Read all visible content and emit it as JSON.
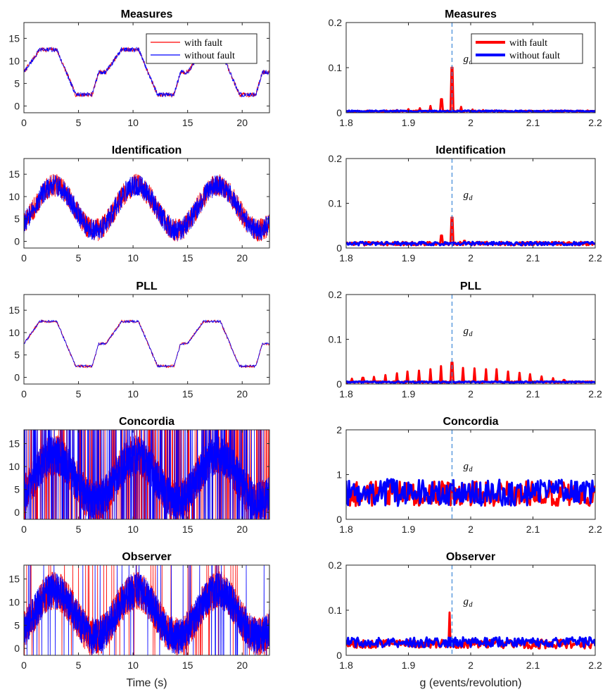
{
  "chart_data": [
    {
      "type": "line",
      "panel": "time",
      "title": "Measures",
      "xlim": [
        0,
        22.5
      ],
      "ylim": [
        -1.5,
        18.5
      ],
      "xticks": [
        "0",
        "5",
        "10",
        "15",
        "20"
      ],
      "yticks": [
        "0",
        "5",
        "10",
        "15"
      ],
      "xlabel": "",
      "ylabel": "",
      "legend": [
        "with fault",
        "without fault"
      ],
      "series": [
        {
          "name": "with fault",
          "color": "#ff0000",
          "shape": "trapezoid",
          "noise": 0.5,
          "spikes": 0
        },
        {
          "name": "without fault",
          "color": "#0000ff",
          "shape": "trapezoid",
          "noise": 0.5,
          "spikes": 0
        }
      ]
    },
    {
      "type": "line",
      "panel": "spectrum",
      "title": "Measures",
      "xlim": [
        1.8,
        2.2
      ],
      "ylim": [
        0,
        0.2
      ],
      "xticks": [
        "1.8",
        "1.9",
        "2",
        "2.1",
        "2.2"
      ],
      "yticks": [
        "0",
        "0.1",
        "0.2"
      ],
      "xlabel": "",
      "ylabel": "",
      "gd": 1.97,
      "gd_label": "g",
      "gd_sub": "d",
      "legend": [
        "with fault",
        "without fault"
      ],
      "series": [
        {
          "name": "with fault",
          "color": "#ff0000",
          "peaks": [
            [
              1.97,
              0.1
            ],
            [
              1.953,
              0.03
            ],
            [
              1.985,
              0.013
            ],
            [
              1.936,
              0.015
            ],
            [
              2.003,
              0.007
            ],
            [
              1.918,
              0.01
            ],
            [
              2.02,
              0.006
            ],
            [
              1.9,
              0.008
            ],
            [
              2.038,
              0.005
            ],
            [
              1.882,
              0.006
            ],
            [
              1.864,
              0.005
            ],
            [
              2.055,
              0.004
            ]
          ],
          "base": 0.002,
          "noise": 0.003
        },
        {
          "name": "without fault",
          "color": "#0000ff",
          "peaks": [],
          "base": 0.002,
          "noise": 0.003
        }
      ]
    },
    {
      "type": "line",
      "panel": "time",
      "title": "Identification",
      "xlim": [
        0,
        22.5
      ],
      "ylim": [
        -1.5,
        18.5
      ],
      "xticks": [
        "0",
        "5",
        "10",
        "15",
        "20"
      ],
      "yticks": [
        "0",
        "5",
        "10",
        "15"
      ],
      "xlabel": "",
      "ylabel": "",
      "series": [
        {
          "name": "with fault",
          "color": "#ff0000",
          "shape": "sine",
          "noise": 2.6,
          "spikes": 0
        },
        {
          "name": "without fault",
          "color": "#0000ff",
          "shape": "sine",
          "noise": 2.4,
          "spikes": 0
        }
      ]
    },
    {
      "type": "line",
      "panel": "spectrum",
      "title": "Identification",
      "xlim": [
        1.8,
        2.2
      ],
      "ylim": [
        0,
        0.2
      ],
      "xticks": [
        "1.8",
        "1.9",
        "2",
        "2.1",
        "2.2"
      ],
      "yticks": [
        "0",
        "0.1",
        "0.2"
      ],
      "xlabel": "",
      "ylabel": "",
      "gd": 1.97,
      "gd_label": "g",
      "gd_sub": "d",
      "series": [
        {
          "name": "with fault",
          "color": "#ff0000",
          "peaks": [
            [
              1.97,
              0.068
            ],
            [
              1.953,
              0.028
            ],
            [
              1.99,
              0.016
            ]
          ],
          "base": 0.006,
          "noise": 0.008
        },
        {
          "name": "without fault",
          "color": "#0000ff",
          "peaks": [],
          "base": 0.006,
          "noise": 0.008
        }
      ]
    },
    {
      "type": "line",
      "panel": "time",
      "title": "PLL",
      "xlim": [
        0,
        22.5
      ],
      "ylim": [
        -1.5,
        18.5
      ],
      "xticks": [
        "0",
        "5",
        "10",
        "15",
        "20"
      ],
      "yticks": [
        "0",
        "5",
        "10",
        "15"
      ],
      "xlabel": "",
      "ylabel": "",
      "series": [
        {
          "name": "with fault",
          "color": "#ff0000",
          "shape": "trapezoid",
          "noise": 0.3,
          "spikes": 0
        },
        {
          "name": "without fault",
          "color": "#0000ff",
          "shape": "trapezoid",
          "noise": 0.25,
          "spikes": 0
        }
      ]
    },
    {
      "type": "line",
      "panel": "spectrum",
      "title": "PLL",
      "xlim": [
        1.8,
        2.2
      ],
      "ylim": [
        0,
        0.2
      ],
      "xticks": [
        "1.8",
        "1.9",
        "2",
        "2.1",
        "2.2"
      ],
      "yticks": [
        "0",
        "0.1",
        "0.2"
      ],
      "xlabel": "",
      "ylabel": "",
      "gd": 1.97,
      "gd_label": "g",
      "gd_sub": "d",
      "series": [
        {
          "name": "with fault",
          "color": "#ff0000",
          "peaks": [
            [
              1.97,
              0.048
            ],
            [
              1.952,
              0.04
            ],
            [
              1.988,
              0.036
            ],
            [
              1.935,
              0.033
            ],
            [
              2.006,
              0.035
            ],
            [
              1.917,
              0.03
            ],
            [
              2.024,
              0.033
            ],
            [
              1.899,
              0.028
            ],
            [
              2.042,
              0.033
            ],
            [
              1.881,
              0.024
            ],
            [
              2.06,
              0.028
            ],
            [
              1.863,
              0.02
            ],
            [
              2.078,
              0.025
            ],
            [
              1.845,
              0.016
            ],
            [
              2.096,
              0.022
            ],
            [
              1.827,
              0.014
            ],
            [
              2.114,
              0.017
            ],
            [
              1.809,
              0.012
            ],
            [
              2.132,
              0.013
            ],
            [
              2.15,
              0.009
            ]
          ],
          "base": 0.003,
          "noise": 0.003
        },
        {
          "name": "without fault",
          "color": "#0000ff",
          "peaks": [],
          "base": 0.003,
          "noise": 0.003
        }
      ]
    },
    {
      "type": "line",
      "panel": "time",
      "title": "Concordia",
      "xlim": [
        0,
        22.5
      ],
      "ylim": [
        -1.5,
        18
      ],
      "xticks": [
        "0",
        "5",
        "10",
        "15",
        "20"
      ],
      "yticks": [
        "0",
        "5",
        "10",
        "15"
      ],
      "xlabel": "",
      "ylabel": "",
      "series": [
        {
          "name": "with fault",
          "color": "#ff0000",
          "shape": "sine",
          "noise": 4.5,
          "spikes": 0.16
        },
        {
          "name": "without fault",
          "color": "#0000ff",
          "shape": "sine",
          "noise": 4.2,
          "spikes": 0.16
        }
      ]
    },
    {
      "type": "line",
      "panel": "spectrum",
      "title": "Concordia",
      "xlim": [
        1.8,
        2.2
      ],
      "ylim": [
        0,
        2
      ],
      "xticks": [
        "1.8",
        "1.9",
        "2",
        "2.1",
        "2.2"
      ],
      "yticks": [
        "0",
        "1",
        "2"
      ],
      "xlabel": "",
      "ylabel": "",
      "gd": 1.97,
      "gd_label": "g",
      "gd_sub": "d",
      "series": [
        {
          "name": "with fault",
          "color": "#ff0000",
          "peaks": [],
          "base": 0.3,
          "noise": 0.55
        },
        {
          "name": "without fault",
          "color": "#0000ff",
          "peaks": [],
          "base": 0.3,
          "noise": 0.6
        }
      ]
    },
    {
      "type": "line",
      "panel": "time",
      "title": "Observer",
      "xlim": [
        0,
        22.5
      ],
      "ylim": [
        -1.5,
        18
      ],
      "xticks": [
        "0",
        "5",
        "10",
        "15",
        "20"
      ],
      "yticks": [
        "0",
        "5",
        "10",
        "15"
      ],
      "xlabel": "Time (s)",
      "ylabel": "",
      "series": [
        {
          "name": "with fault",
          "color": "#ff0000",
          "shape": "sine",
          "noise": 4.2,
          "spikes": 0.03
        },
        {
          "name": "without fault",
          "color": "#0000ff",
          "shape": "sine",
          "noise": 3.9,
          "spikes": 0.03
        }
      ]
    },
    {
      "type": "line",
      "panel": "spectrum",
      "title": "Observer",
      "xlim": [
        1.8,
        2.2
      ],
      "ylim": [
        0,
        0.2
      ],
      "xticks": [
        "1.8",
        "1.9",
        "2",
        "2.1",
        "2.2"
      ],
      "yticks": [
        "0",
        "0.1",
        "0.2"
      ],
      "xlabel": "g (events/revolution)",
      "ylabel": "",
      "gd": 1.97,
      "gd_label": "g",
      "gd_sub": "d",
      "series": [
        {
          "name": "with fault",
          "color": "#ff0000",
          "peaks": [
            [
              1.966,
              0.095
            ],
            [
              2.005,
              0.035
            ],
            [
              2.04,
              0.03
            ]
          ],
          "base": 0.015,
          "noise": 0.02
        },
        {
          "name": "without fault",
          "color": "#0000ff",
          "peaks": [],
          "base": 0.018,
          "noise": 0.022
        }
      ]
    }
  ]
}
